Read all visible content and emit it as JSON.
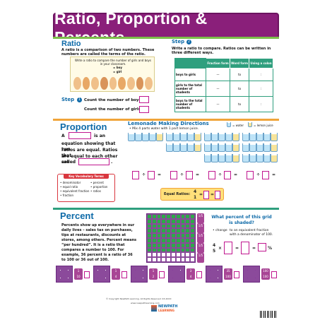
{
  "title": "Ratio, Proportion & Percents",
  "ratio": {
    "heading": "Ratio",
    "intro": "A ratio is a comparison of two numbers. These numbers are called the terms of the ratio.",
    "card": "Write a ratio to compare the number of girls and boys in your classroom.",
    "card_items": [
      "= boy",
      "= girl"
    ],
    "step1_label": "Step",
    "step1_num": "1",
    "count_boys": "Count the number of boys:",
    "count_girls": "Count the number of girls:",
    "step2_label": "Step",
    "step2_num": "2",
    "step2_text": "Write a ratio to compare. Ratios can be written in three different ways.",
    "table_headers": [
      "",
      "Fraction form",
      "Word form",
      "Using a colon"
    ],
    "table_rows": [
      {
        "label": "boys to girls",
        "word": "to",
        "colon": ":"
      },
      {
        "label": "girls to the total number of students",
        "word": "to",
        "colon": ":"
      },
      {
        "label": "boys to the total number of students",
        "word": "to",
        "colon": ":"
      }
    ]
  },
  "proportion": {
    "heading": "Proportion",
    "text": [
      "A",
      "is an",
      "equation showing that two",
      "ratios are equal. Ratios that",
      "are equal to each other are",
      "called",
      "."
    ],
    "lemonade_title": "Lemonade Making Directions",
    "lemonade_sub": "• Mix 4 parts water with 1 part lemon juice.",
    "legend_water": "= water",
    "legend_lemon": "= lemon juice",
    "vocab_title": "Key Vocabulary Terms",
    "vocab_left": [
      "• denominator",
      "• equal ratio",
      "• equivalent fraction",
      "• fraction"
    ],
    "vocab_right": [
      "• percent",
      "• proportion",
      "• ratios"
    ],
    "equal_ratios_label": "Equal Ratios:",
    "er_num": "4",
    "er_den": "1",
    "eq": "=",
    "div": "÷"
  },
  "percent": {
    "heading": "Percent",
    "text": "Percents show up everywhere in our daily lives – sales tax on purchases, tips at restaurants, discounts at stores, among others. Percent means “per hundred”. It is a ratio that compares a number to 100. For example, 36 percent is a ratio of 36 to 100 or 36 out of 100.",
    "question": "What percent of this grid is shaded?",
    "bullet": "• change",
    "bullet_rest": "to an equivalent fraction with a denominator of 100.",
    "eq_num": "4",
    "eq_den": "5",
    "times": "×",
    "pct": "%",
    "bottom_fracs": [
      {
        "n": "1",
        "d": "10"
      },
      {
        "n": "1",
        "d": "4"
      },
      {
        "n": "1",
        "d": "2"
      },
      {
        "n": "3",
        "d": "4"
      },
      {
        "n": "35",
        "d": "100"
      }
    ],
    "bottom_last": {
      "n": "100",
      "d": "100"
    },
    "side_fracs": [
      "1/5",
      "1/5",
      "1/5",
      "1/5",
      "1/5"
    ],
    "shaded_fraction": 0.8,
    "copyright": "© Copyright NewPath Learning. All Rights Reserved. 93-4XXX",
    "site": "www.newpathlearning.com"
  },
  "logo": {
    "line1": "NEWPATH",
    "line2": "LEARNING"
  }
}
